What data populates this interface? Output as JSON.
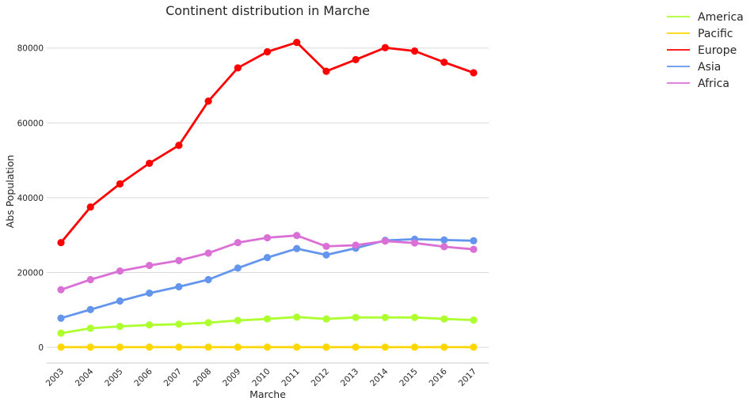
{
  "chart_data": {
    "type": "line",
    "title": "Continent distribution in Marche",
    "xlabel": "Marche",
    "ylabel": "Abs Population",
    "x": [
      "2003",
      "2004",
      "2005",
      "2006",
      "2007",
      "2008",
      "2009",
      "2010",
      "2011",
      "2012",
      "2013",
      "2014",
      "2015",
      "2016",
      "2017"
    ],
    "ylim": [
      -4200,
      86500
    ],
    "yticks": [
      0,
      20000,
      40000,
      60000,
      80000
    ],
    "grid": "horizontal",
    "legend_position": "outside-right",
    "series": [
      {
        "name": "America",
        "color": "#adff2f",
        "values": [
          3800,
          5100,
          5600,
          6000,
          6200,
          6600,
          7200,
          7600,
          8100,
          7600,
          8000,
          8000,
          8000,
          7600,
          7300
        ]
      },
      {
        "name": "Pacific",
        "color": "#ffd700",
        "values": [
          50,
          60,
          60,
          60,
          60,
          60,
          60,
          60,
          60,
          60,
          60,
          60,
          60,
          60,
          60
        ]
      },
      {
        "name": "Europe",
        "color": "#ff0000",
        "values": [
          28000,
          37500,
          43700,
          49200,
          54000,
          65800,
          74700,
          79000,
          81500,
          73800,
          76900,
          80100,
          79200,
          76200,
          73400
        ]
      },
      {
        "name": "Asia",
        "color": "#6495ed",
        "values": [
          7800,
          10100,
          12400,
          14500,
          16200,
          18100,
          21200,
          24000,
          26400,
          24700,
          26500,
          28600,
          28900,
          28700,
          28500
        ]
      },
      {
        "name": "Africa",
        "color": "#da70d6",
        "values": [
          15400,
          18100,
          20400,
          21900,
          23200,
          25200,
          28000,
          29300,
          29900,
          27000,
          27300,
          28400,
          27900,
          26900,
          26200
        ]
      }
    ]
  }
}
